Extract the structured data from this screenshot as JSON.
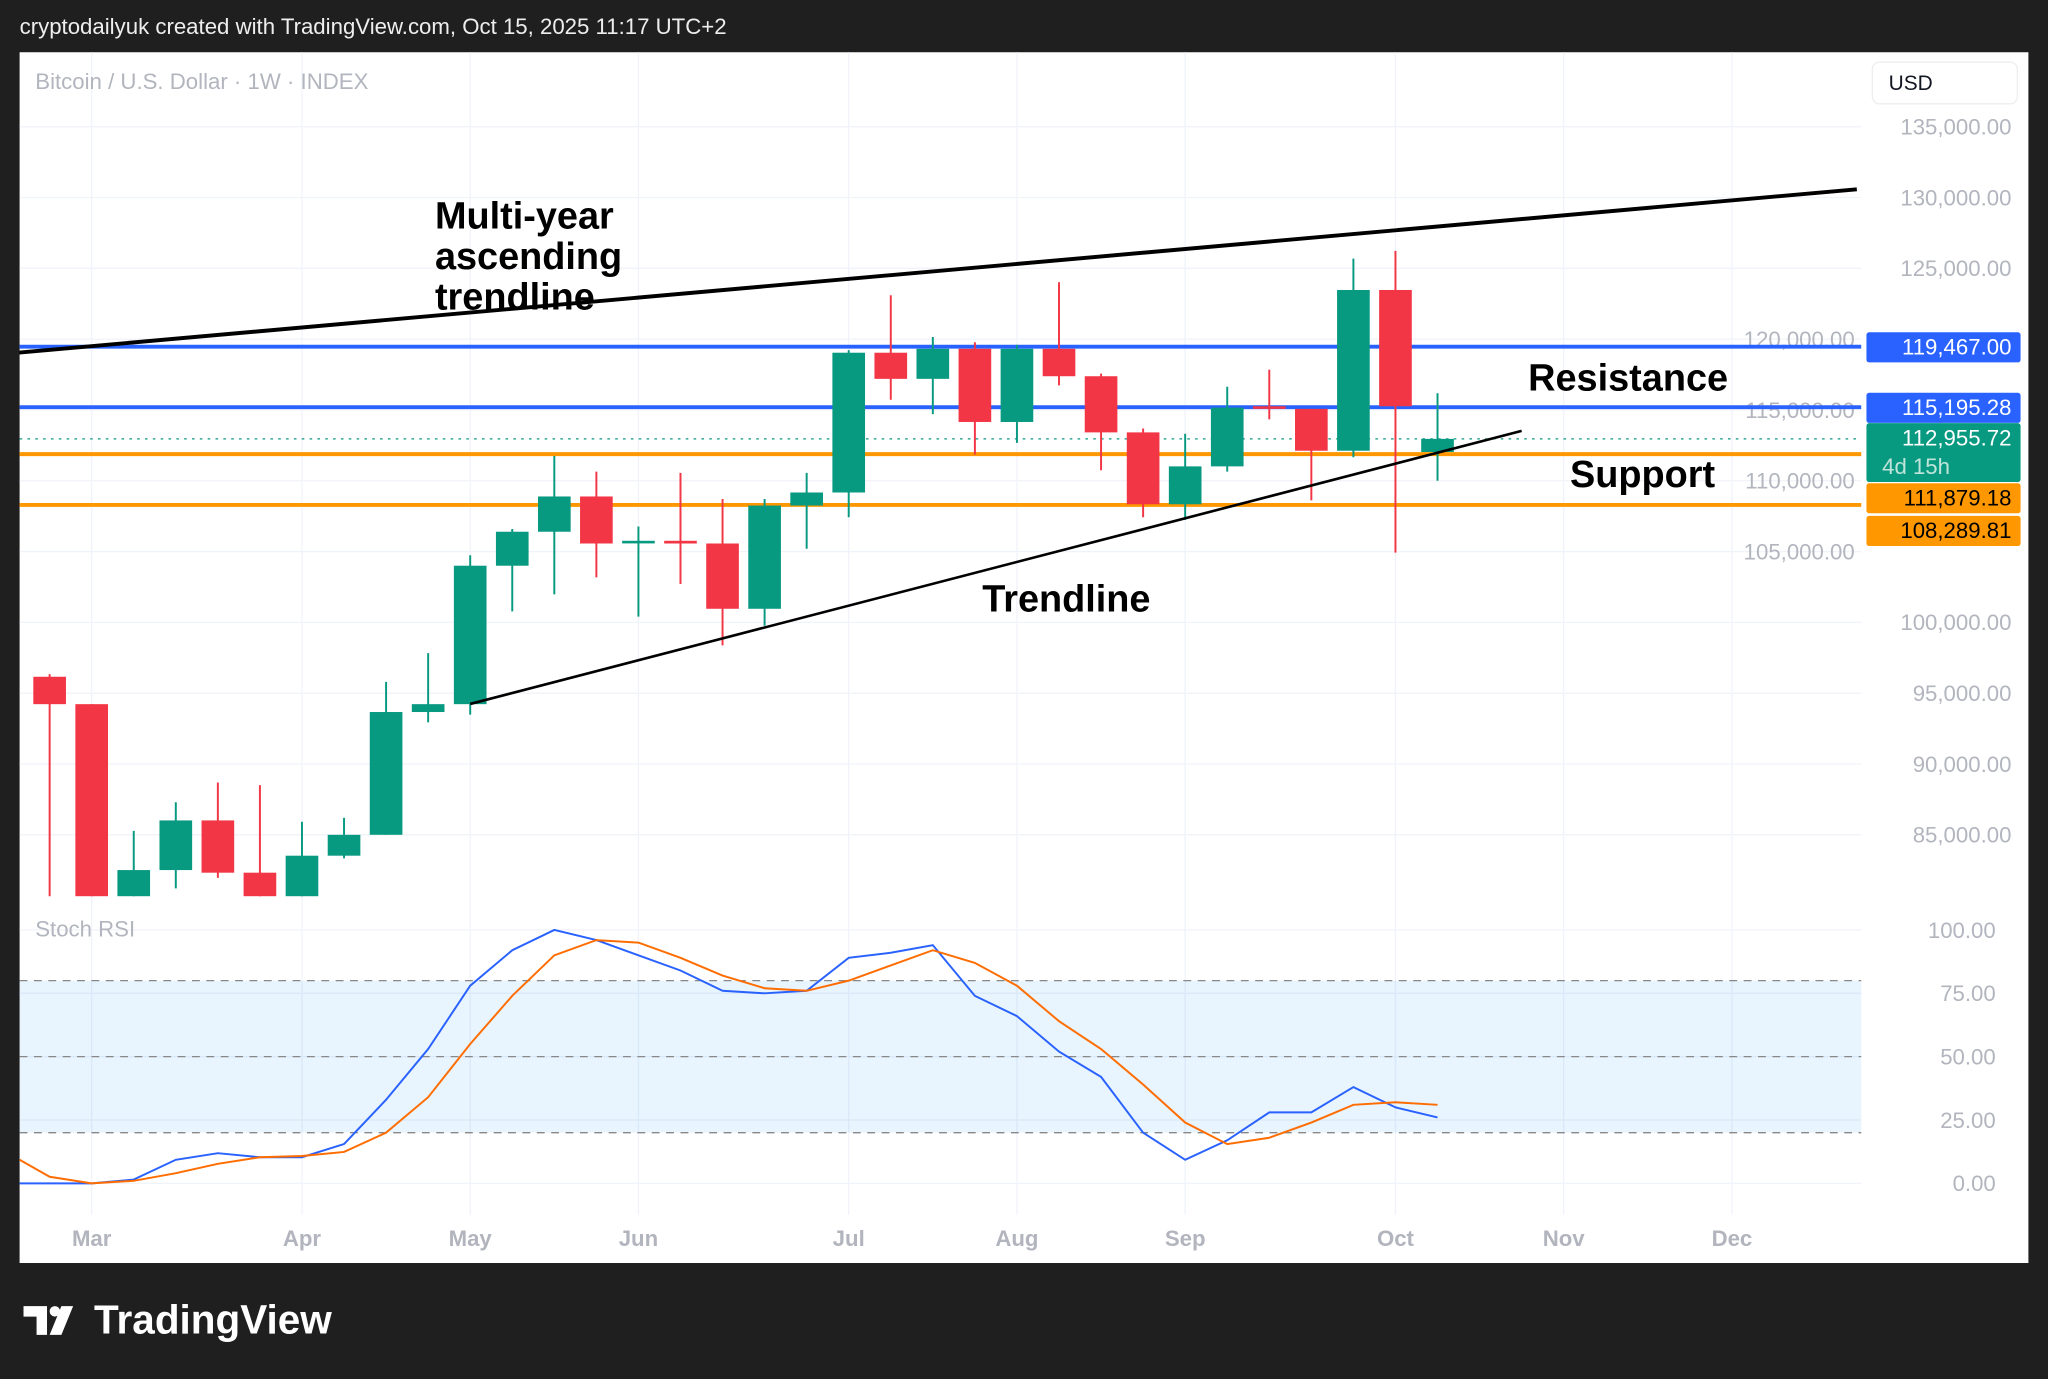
{
  "header": {
    "credit": "cryptodailyuk created with TradingView.com, Oct 15, 2025 11:17 UTC+2"
  },
  "chart": {
    "symbol": "Bitcoin / U.S. Dollar · 1W · INDEX",
    "currency": "USD",
    "indicator_label": "Stoch RSI"
  },
  "footer": {
    "brand": "TradingView"
  },
  "chart_data": {
    "type": "candlestick",
    "title": "Bitcoin / U.S. Dollar · 1W · INDEX",
    "ylim": [
      77000,
      137000
    ],
    "price_ticks": [
      85000,
      90000,
      95000,
      100000,
      105000,
      110000,
      115000,
      120000,
      125000,
      130000,
      135000
    ],
    "price_tick_labels": [
      "85,000.00",
      "90,000.00",
      "95,000.00",
      "100,000.00",
      "105,000.00",
      "110,000.00",
      "115,000.00",
      "120,000.00",
      "125,000.00",
      "130,000.00",
      "135,000.00"
    ],
    "month_ticks": [
      {
        "label": "Mar",
        "index": 1
      },
      {
        "label": "Apr",
        "index": 6
      },
      {
        "label": "May",
        "index": 10
      },
      {
        "label": "Jun",
        "index": 14
      },
      {
        "label": "Jul",
        "index": 19
      },
      {
        "label": "Aug",
        "index": 23
      },
      {
        "label": "Sep",
        "index": 27
      },
      {
        "label": "Oct",
        "index": 32
      },
      {
        "label": "Nov",
        "index": 36
      },
      {
        "label": "Dec",
        "index": 40
      }
    ],
    "candles": [
      [
        96160,
        94225,
        96350,
        80665
      ],
      [
        94225,
        80665,
        94225,
        80665
      ],
      [
        80665,
        82510,
        85280,
        80665
      ],
      [
        82510,
        86015,
        87300,
        81220
      ],
      [
        86015,
        82325,
        88690,
        81955
      ],
      [
        82325,
        80665,
        88505,
        80665
      ],
      [
        80665,
        83525,
        85925,
        80665
      ],
      [
        83525,
        85000,
        86200,
        83340
      ],
      [
        85000,
        93670,
        95795,
        85000
      ],
      [
        93670,
        94225,
        97825,
        92935
      ],
      [
        94225,
        104000,
        104740,
        93490
      ],
      [
        104000,
        106400,
        106590,
        100775
      ],
      [
        106400,
        108890,
        111750,
        101975
      ],
      [
        108890,
        105570,
        110645,
        103175
      ],
      [
        105665,
        105760,
        106770,
        100405
      ],
      [
        105760,
        105570,
        110555,
        102710
      ],
      [
        105570,
        100960,
        108710,
        98375
      ],
      [
        100960,
        108250,
        108710,
        99760
      ],
      [
        108250,
        109170,
        110555,
        105200
      ],
      [
        109170,
        119040,
        119225,
        107420
      ],
      [
        119040,
        117195,
        123100,
        115720
      ],
      [
        117195,
        119320,
        120150,
        114705
      ],
      [
        119320,
        114150,
        119780,
        111845
      ],
      [
        114150,
        119320,
        119595,
        112675
      ],
      [
        119320,
        117380,
        124020,
        116735
      ],
      [
        117380,
        113415,
        117565,
        110740
      ],
      [
        113415,
        108340,
        113690,
        107420
      ],
      [
        108340,
        111015,
        113320,
        107235
      ],
      [
        111015,
        115165,
        116640,
        110645
      ],
      [
        115260,
        115075,
        117840,
        114335
      ],
      [
        115075,
        112120,
        115075,
        108615
      ],
      [
        112120,
        123470,
        125685,
        111660
      ],
      [
        123470,
        115260,
        126235,
        104925
      ],
      [
        112030,
        112956,
        116180,
        110000
      ]
    ],
    "candle_fields": [
      "open",
      "close",
      "high",
      "low"
    ],
    "levels": [
      {
        "name": "resistance-upper",
        "value": 119467.0,
        "label": "119,467.00",
        "color": "#2962ff"
      },
      {
        "name": "resistance-lower",
        "value": 115195.28,
        "label": "115,195.28",
        "color": "#2962ff"
      },
      {
        "name": "support-upper",
        "value": 111879.18,
        "label": "111,879.18",
        "color": "#ff9800"
      },
      {
        "name": "support-lower",
        "value": 108289.81,
        "label": "108,289.81",
        "color": "#ff9800"
      }
    ],
    "last_price": {
      "value": 112955.72,
      "label": "112,955.72",
      "countdown": "4d 15h",
      "color": "#089981"
    },
    "trendlines": [
      {
        "name": "multi-year-ascending-trendline",
        "from": {
          "index": -0.72,
          "price": 119050
        },
        "to": {
          "index": 42.97,
          "price": 130580
        }
      },
      {
        "name": "trendline",
        "from": {
          "index": 10,
          "price": 94240
        },
        "to": {
          "index": 35,
          "price": 113520
        }
      }
    ],
    "annotations": [
      {
        "name": "multi-year-label",
        "lines": [
          "Multi-year",
          "ascending",
          "trendline"
        ]
      },
      {
        "name": "resistance-label",
        "text": "Resistance"
      },
      {
        "name": "support-label",
        "text": "Support"
      },
      {
        "name": "trendline-label",
        "text": "Trendline"
      }
    ],
    "stoch_rsi": {
      "ylim": [
        0,
        100
      ],
      "bands": [
        20,
        50,
        80
      ],
      "ticks": [
        0,
        25,
        50,
        75,
        100
      ],
      "tick_labels": [
        "0.00",
        "25.00",
        "50.00",
        "75.00",
        "100.00"
      ],
      "k": [
        0,
        0,
        1.5,
        9.3,
        11.9,
        10.3,
        10.3,
        15.5,
        33,
        53,
        78,
        92,
        100,
        96,
        90,
        84,
        76,
        75,
        76,
        89,
        91,
        94,
        74,
        66,
        52,
        42,
        20,
        9.3,
        17,
        28,
        28,
        38,
        30,
        26
      ],
      "d": [
        2.6,
        0,
        1,
        4,
        7.7,
        10.3,
        10.8,
        12.4,
        20,
        34,
        55,
        74,
        90,
        96,
        95,
        89,
        82,
        77,
        76,
        80,
        86,
        92,
        87,
        78,
        64,
        53,
        39,
        24,
        15.5,
        18,
        24,
        31,
        32,
        31
      ],
      "k_color": "#2962ff",
      "d_color": "#ff6d00"
    },
    "colors": {
      "up": "#089981",
      "down": "#f23645"
    }
  }
}
